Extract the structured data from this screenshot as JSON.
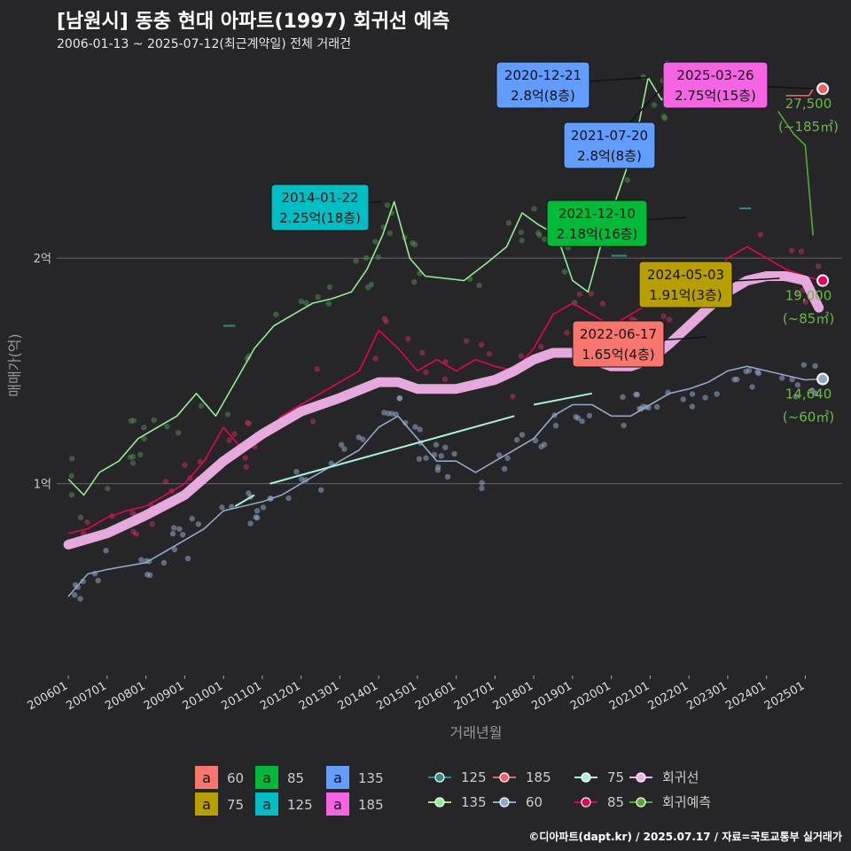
{
  "title": "[남원시] 동충 현대 아파트(1997) 회귀선 예측",
  "subtitle": "2006-01-13 ~ 2025-07-12(최근계약일) 전체 거래건",
  "caption": "©디아파트(dapt.kr) / 2025.07.17 / 자료=국토교통부 실거래가",
  "colors": {
    "background": "#262628",
    "a60": "#f8766d",
    "a75": "#b79f00",
    "a85": "#00ba38",
    "a125": "#00bfc4",
    "a135": "#619cff",
    "a185": "#f564e3",
    "l125": "#2e8b8b",
    "l135": "#90ee90",
    "l60": "#8fa8c8",
    "l75": "#a8f0e0",
    "l85": "#e8005a",
    "l185": "#f06060",
    "regression": "#f0b0e8",
    "forecast": "#55aa33"
  },
  "chart_data": {
    "type": "line",
    "xlabel": "거래년월",
    "ylabel": "매매가(억)",
    "x_ticks": [
      "200601",
      "200701",
      "200801",
      "200901",
      "201001",
      "201101",
      "201201",
      "201301",
      "201401",
      "201501",
      "201601",
      "201701",
      "201801",
      "201901",
      "202001",
      "202101",
      "202201",
      "202301",
      "202401",
      "202501"
    ],
    "y_ticks": [
      {
        "value": 1.0,
        "label": "1억"
      },
      {
        "value": 2.0,
        "label": "2억"
      }
    ],
    "ylim": [
      0.15,
      2.9
    ],
    "xlim": [
      2005.7,
      2025.95
    ],
    "grid": true,
    "legend_position": "bottom",
    "series": [
      {
        "name": "60",
        "key": "l60",
        "points": [
          [
            2006.0,
            0.5
          ],
          [
            2006.5,
            0.6
          ],
          [
            2007.0,
            0.62
          ],
          [
            2008.0,
            0.65
          ],
          [
            2008.5,
            0.7
          ],
          [
            2009.0,
            0.75
          ],
          [
            2009.5,
            0.8
          ],
          [
            2010.0,
            0.88
          ],
          [
            2010.5,
            0.9
          ],
          [
            2011.0,
            0.92
          ],
          [
            2011.5,
            0.95
          ],
          [
            2012.0,
            1.0
          ],
          [
            2012.5,
            1.05
          ],
          [
            2013.0,
            1.1
          ],
          [
            2013.5,
            1.15
          ],
          [
            2014.0,
            1.25
          ],
          [
            2014.5,
            1.3
          ],
          [
            2015.0,
            1.2
          ],
          [
            2015.5,
            1.1
          ],
          [
            2016.0,
            1.1
          ],
          [
            2016.5,
            1.05
          ],
          [
            2017.0,
            1.1
          ],
          [
            2017.5,
            1.15
          ],
          [
            2018.0,
            1.2
          ],
          [
            2018.5,
            1.3
          ],
          [
            2019.0,
            1.35
          ],
          [
            2019.5,
            1.35
          ],
          [
            2020.0,
            1.3
          ],
          [
            2020.5,
            1.3
          ],
          [
            2021.0,
            1.35
          ],
          [
            2021.5,
            1.4
          ],
          [
            2022.0,
            1.42
          ],
          [
            2022.5,
            1.45
          ],
          [
            2023.0,
            1.5
          ],
          [
            2023.5,
            1.52
          ],
          [
            2024.0,
            1.5
          ],
          [
            2024.5,
            1.48
          ],
          [
            2025.0,
            1.46
          ],
          [
            2025.4,
            1.464
          ]
        ]
      },
      {
        "name": "85",
        "key": "l85",
        "points": [
          [
            2006.0,
            0.78
          ],
          [
            2006.5,
            0.8
          ],
          [
            2007.0,
            0.85
          ],
          [
            2007.5,
            0.88
          ],
          [
            2008.0,
            0.9
          ],
          [
            2008.5,
            0.95
          ],
          [
            2009.0,
            1.0
          ],
          [
            2009.5,
            1.1
          ],
          [
            2010.0,
            1.25
          ],
          [
            2010.5,
            1.15
          ],
          [
            2011.0,
            1.2
          ],
          [
            2011.5,
            1.3
          ],
          [
            2012.0,
            1.35
          ],
          [
            2012.5,
            1.4
          ],
          [
            2013.0,
            1.45
          ],
          [
            2013.5,
            1.5
          ],
          [
            2014.0,
            1.68
          ],
          [
            2014.5,
            1.6
          ],
          [
            2015.0,
            1.5
          ],
          [
            2015.5,
            1.55
          ],
          [
            2016.0,
            1.5
          ],
          [
            2016.5,
            1.55
          ],
          [
            2017.0,
            1.52
          ],
          [
            2017.5,
            1.5
          ],
          [
            2018.0,
            1.6
          ],
          [
            2018.5,
            1.75
          ],
          [
            2019.0,
            1.8
          ],
          [
            2019.5,
            1.75
          ],
          [
            2020.0,
            1.7
          ],
          [
            2020.5,
            1.75
          ],
          [
            2021.0,
            1.8
          ],
          [
            2021.5,
            1.82
          ],
          [
            2022.0,
            1.85
          ],
          [
            2022.5,
            1.9
          ],
          [
            2023.0,
            2.0
          ],
          [
            2023.5,
            2.05
          ],
          [
            2024.0,
            2.0
          ],
          [
            2024.5,
            1.95
          ],
          [
            2025.0,
            1.92
          ],
          [
            2025.4,
            1.9
          ]
        ]
      },
      {
        "name": "135",
        "key": "l135",
        "points": [
          [
            2006.0,
            1.02
          ],
          [
            2006.4,
            0.95
          ],
          [
            2006.8,
            1.05
          ],
          [
            2007.3,
            1.1
          ],
          [
            2007.8,
            1.2
          ],
          [
            2008.3,
            1.25
          ],
          [
            2008.8,
            1.3
          ],
          [
            2009.3,
            1.4
          ],
          [
            2009.8,
            1.3
          ],
          [
            2010.3,
            1.45
          ],
          [
            2010.8,
            1.6
          ],
          [
            2011.3,
            1.7
          ],
          [
            2011.8,
            1.75
          ],
          [
            2012.3,
            1.8
          ],
          [
            2012.8,
            1.82
          ],
          [
            2013.3,
            1.85
          ],
          [
            2013.7,
            1.95
          ],
          [
            2014.1,
            2.1
          ],
          [
            2014.4,
            2.25
          ],
          [
            2014.8,
            2.0
          ],
          [
            2015.2,
            1.92
          ],
          [
            2016.2,
            1.9
          ],
          [
            2016.8,
            1.98
          ],
          [
            2017.3,
            2.05
          ],
          [
            2017.7,
            2.2
          ],
          [
            2018.1,
            2.15
          ],
          [
            2018.6,
            2.1
          ],
          [
            2019.0,
            1.9
          ],
          [
            2019.4,
            1.85
          ],
          [
            2019.8,
            2.1
          ],
          [
            2020.2,
            2.3
          ],
          [
            2020.6,
            2.5
          ],
          [
            2020.95,
            2.8
          ],
          [
            2021.3,
            2.7
          ],
          [
            2021.6,
            2.8
          ]
        ]
      },
      {
        "name": "185",
        "key": "l185",
        "points": [
          [
            2024.5,
            2.72
          ],
          [
            2025.1,
            2.72
          ],
          [
            2025.2,
            2.75
          ]
        ]
      },
      {
        "name": "125",
        "key": "l125",
        "points": [
          [
            2010.0,
            1.7
          ],
          [
            2010.3,
            1.7
          ],
          [
            2020.0,
            2.01
          ],
          [
            2020.4,
            2.01
          ],
          [
            2023.3,
            2.22
          ],
          [
            2023.6,
            2.22
          ]
        ]
      },
      {
        "name": "75",
        "key": "l75",
        "points": [
          [
            2010.3,
            0.9
          ],
          [
            2010.8,
            0.95
          ],
          [
            2011.2,
            1.0
          ],
          [
            2017.5,
            1.3
          ],
          [
            2018.0,
            1.35
          ],
          [
            2019.5,
            1.4
          ],
          [
            2020.0,
            1.35
          ]
        ]
      },
      {
        "name": "회귀선",
        "key": "regression",
        "points": [
          [
            2006.0,
            0.73
          ],
          [
            2007.0,
            0.78
          ],
          [
            2008.0,
            0.86
          ],
          [
            2009.0,
            0.95
          ],
          [
            2010.0,
            1.1
          ],
          [
            2011.0,
            1.22
          ],
          [
            2012.0,
            1.32
          ],
          [
            2013.0,
            1.38
          ],
          [
            2014.0,
            1.45
          ],
          [
            2014.5,
            1.45
          ],
          [
            2015.0,
            1.42
          ],
          [
            2016.0,
            1.42
          ],
          [
            2016.5,
            1.44
          ],
          [
            2017.0,
            1.46
          ],
          [
            2017.5,
            1.5
          ],
          [
            2018.0,
            1.55
          ],
          [
            2018.5,
            1.58
          ],
          [
            2019.0,
            1.58
          ],
          [
            2019.5,
            1.55
          ],
          [
            2020.0,
            1.52
          ],
          [
            2020.5,
            1.52
          ],
          [
            2021.0,
            1.55
          ],
          [
            2021.5,
            1.62
          ],
          [
            2022.0,
            1.7
          ],
          [
            2022.5,
            1.78
          ],
          [
            2023.0,
            1.85
          ],
          [
            2023.5,
            1.9
          ],
          [
            2024.0,
            1.92
          ],
          [
            2024.5,
            1.92
          ],
          [
            2025.0,
            1.9
          ],
          [
            2025.35,
            1.78
          ]
        ]
      },
      {
        "name": "회귀예측",
        "key": "forecast",
        "points": [
          [
            2024.3,
            2.65
          ],
          [
            2024.7,
            2.55
          ],
          [
            2025.0,
            2.5
          ],
          [
            2025.2,
            2.1
          ]
        ]
      }
    ],
    "annotations": [
      {
        "date": "2020-12-21",
        "text": "2.8억(8층)",
        "fill": "#619cff",
        "x": 2020.97,
        "y": 2.8
      },
      {
        "date": "2021-07-20",
        "text": "2.8억(8층)",
        "fill": "#619cff",
        "x": 2021.55,
        "y": 2.8
      },
      {
        "date": "2025-03-26",
        "text": "2.75억(15층)",
        "fill": "#f564e3",
        "x": 2025.23,
        "y": 2.75
      },
      {
        "date": "2014-01-22",
        "text": "2.25억(18층)",
        "fill": "#00bfc4",
        "x": 2014.06,
        "y": 2.25
      },
      {
        "date": "2021-12-10",
        "text": "2.18억(16층)",
        "fill": "#00ba38",
        "x": 2021.94,
        "y": 2.18
      },
      {
        "date": "2024-05-03",
        "text": "1.91억(3층)",
        "fill": "#b79f00",
        "x": 2024.34,
        "y": 1.91
      },
      {
        "date": "2022-06-17",
        "text": "1.65억(4층)",
        "fill": "#f8766d",
        "x": 2022.46,
        "y": 1.65
      }
    ],
    "right_labels": [
      {
        "value": "27,500",
        "sub": "(~185㎡)",
        "y": 2.75
      },
      {
        "value": "19,000",
        "sub": "(~85㎡)",
        "y": 1.9
      },
      {
        "value": "14,640",
        "sub": "(~60㎡)",
        "y": 1.464
      }
    ]
  },
  "legend": {
    "area_items": [
      {
        "symbol": "a",
        "label": "60",
        "color": "#f8766d"
      },
      {
        "symbol": "a",
        "label": "85",
        "color": "#00ba38"
      },
      {
        "symbol": "a",
        "label": "135",
        "color": "#619cff"
      },
      {
        "symbol": "a",
        "label": "75",
        "color": "#b79f00"
      },
      {
        "symbol": "a",
        "label": "125",
        "color": "#00bfc4"
      },
      {
        "symbol": "a",
        "label": "185",
        "color": "#f564e3"
      }
    ],
    "line_items": [
      {
        "label": "125",
        "color": "#2e8b8b"
      },
      {
        "label": "185",
        "color": "#f06060"
      },
      {
        "label": "75",
        "color": "#a8f0e0"
      },
      {
        "label": "회귀선",
        "color": "#f0b0e8"
      },
      {
        "label": "135",
        "color": "#90ee90"
      },
      {
        "label": "60",
        "color": "#8fa8c8"
      },
      {
        "label": "85",
        "color": "#e8005a"
      },
      {
        "label": "회귀예측",
        "color": "#55aa33"
      }
    ]
  }
}
